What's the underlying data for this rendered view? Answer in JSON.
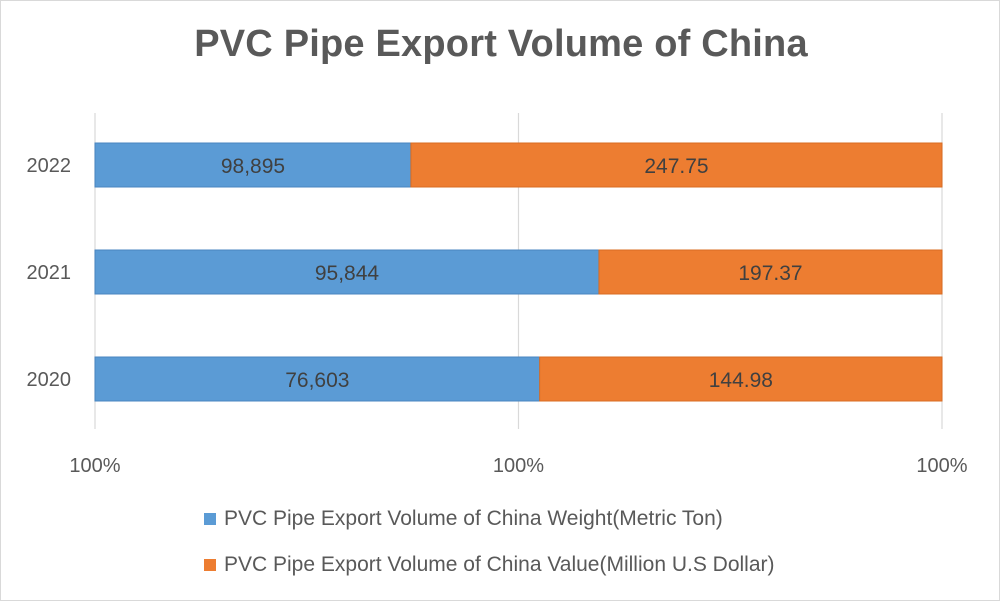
{
  "chart_data": {
    "type": "bar",
    "orientation": "horizontal",
    "stacked": "100%",
    "title": "PVC Pipe Export Volume of China",
    "categories": [
      "2020",
      "2021",
      "2022"
    ],
    "series": [
      {
        "name": "PVC Pipe Export Volume of China Weight(Metric Ton)",
        "color": "#5b9bd5",
        "values": [
          76603,
          95844,
          98895
        ],
        "labels": [
          "76,603",
          "95,844",
          "98,895"
        ],
        "shares": [
          0.525,
          0.595,
          0.373
        ]
      },
      {
        "name": "PVC Pipe Export Volume of China Value(Million U.S Dollar)",
        "color": "#ed7d31",
        "values": [
          144.98,
          197.37,
          247.75
        ],
        "labels": [
          "144.98",
          "197.37",
          "247.75"
        ],
        "shares": [
          0.475,
          0.405,
          0.627
        ]
      }
    ],
    "x_tick_labels": [
      "100%",
      "100%",
      "100%"
    ],
    "xlabel": "",
    "ylabel": "",
    "grid": true,
    "legend_position": "bottom"
  }
}
